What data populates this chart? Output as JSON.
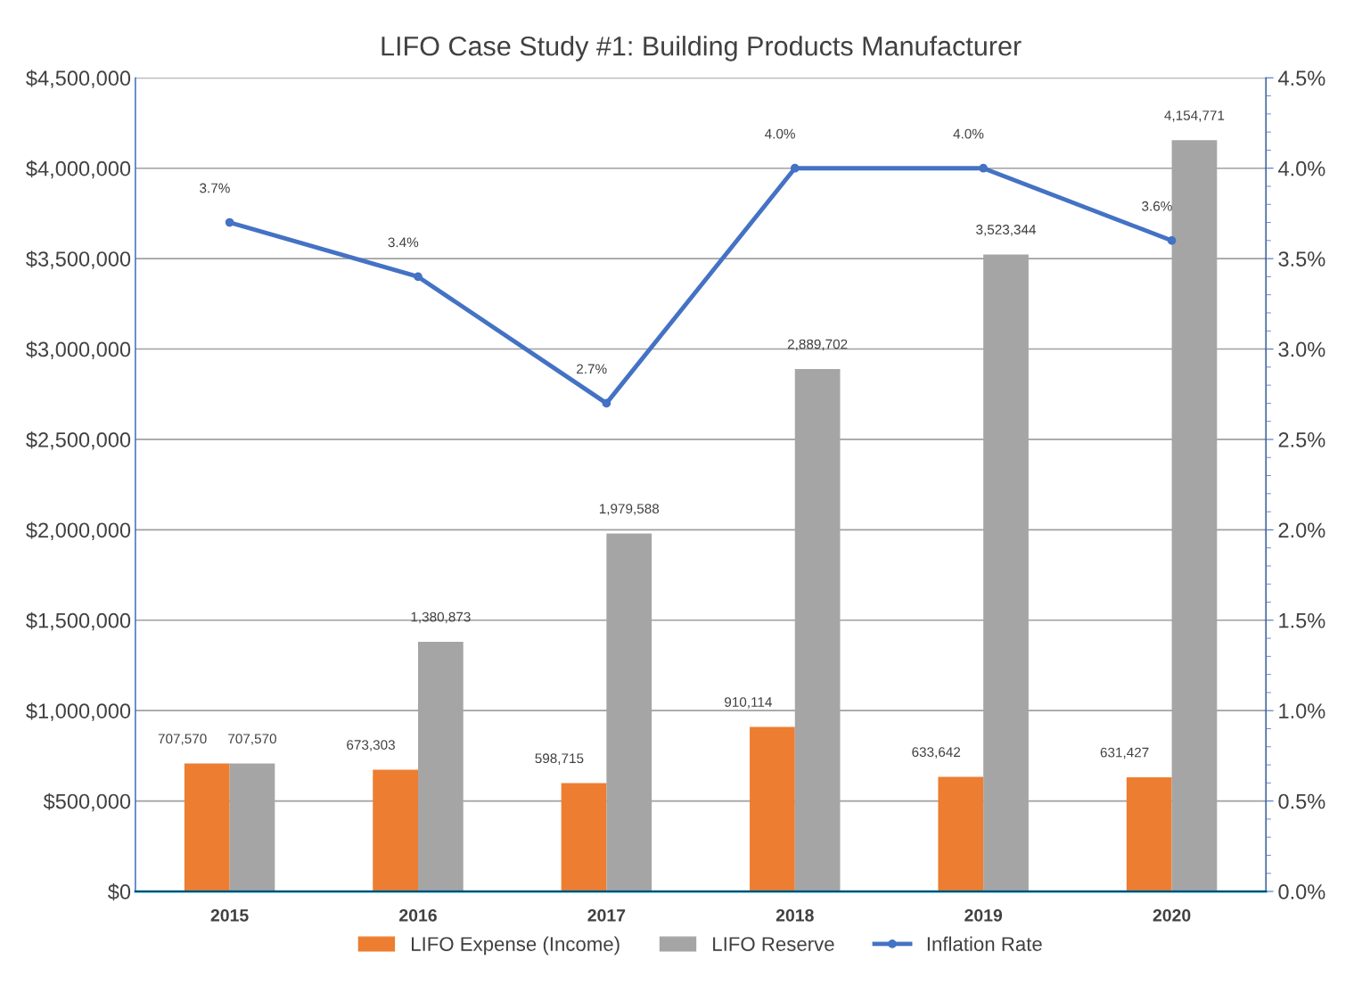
{
  "chart_data": {
    "type": "bar",
    "title": "LIFO Case Study #1: Building Products Manufacturer",
    "categories": [
      "2015",
      "2016",
      "2017",
      "2018",
      "2019",
      "2020"
    ],
    "series": [
      {
        "name": "LIFO Expense (Income)",
        "color": "#ed7d31",
        "values": [
          707570,
          673303,
          598715,
          910114,
          633642,
          631427
        ],
        "value_labels": [
          "707,570",
          "673,303",
          "598,715",
          "910,114",
          "633,642",
          "631,427"
        ]
      },
      {
        "name": "LIFO Reserve",
        "color": "#a5a5a5",
        "values": [
          707570,
          1380873,
          1979588,
          2889702,
          3523344,
          4154771
        ],
        "value_labels": [
          "707,570",
          "1,380,873",
          "1,979,588",
          "2,889,702",
          "3,523,344",
          "4,154,771"
        ]
      },
      {
        "name": "Inflation Rate",
        "type": "line",
        "axis": "y2",
        "color": "#4472c4",
        "marker": "circle",
        "values": [
          3.7,
          3.4,
          2.7,
          4.0,
          4.0,
          3.6
        ],
        "value_labels": [
          "3.7%",
          "3.4%",
          "2.7%",
          "4.0%",
          "4.0%",
          "3.6%"
        ]
      }
    ],
    "ylim": [
      0,
      4500000
    ],
    "yticks": [
      {
        "value": 0,
        "label": "$0"
      },
      {
        "value": 500000,
        "label": "$500,000"
      },
      {
        "value": 1000000,
        "label": "$1,000,000"
      },
      {
        "value": 1500000,
        "label": "$1,500,000"
      },
      {
        "value": 2000000,
        "label": "$2,000,000"
      },
      {
        "value": 2500000,
        "label": "$2,500,000"
      },
      {
        "value": 3000000,
        "label": "$3,000,000"
      },
      {
        "value": 3500000,
        "label": "$3,500,000"
      },
      {
        "value": 4000000,
        "label": "$4,000,000"
      },
      {
        "value": 4500000,
        "label": "$4,500,000"
      }
    ],
    "y2lim": [
      0,
      4.5
    ],
    "y2ticks": [
      {
        "value": 0,
        "label": "0.0%"
      },
      {
        "value": 0.5,
        "label": "0.5%"
      },
      {
        "value": 1.0,
        "label": "1.0%"
      },
      {
        "value": 1.5,
        "label": "1.5%"
      },
      {
        "value": 2.0,
        "label": "2.0%"
      },
      {
        "value": 2.5,
        "label": "2.5%"
      },
      {
        "value": 3.0,
        "label": "3.0%"
      },
      {
        "value": 3.5,
        "label": "3.5%"
      },
      {
        "value": 4.0,
        "label": "4.0%"
      },
      {
        "value": 4.5,
        "label": "4.5%"
      }
    ],
    "grid": "y",
    "legend": "bottom"
  }
}
